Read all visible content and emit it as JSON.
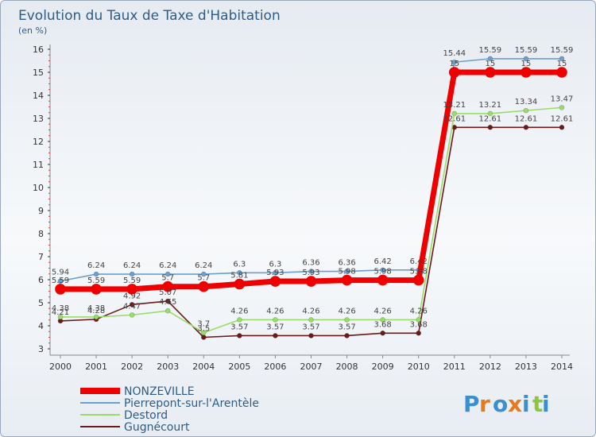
{
  "chart_data": {
    "type": "line",
    "title": "Evolution du Taux de Taxe d'Habitation",
    "subtitle": "(en %)",
    "xlabel": "",
    "ylabel": "",
    "x": [
      "2000",
      "2001",
      "2002",
      "2003",
      "2004",
      "2005",
      "2006",
      "2007",
      "2008",
      "2009",
      "2010",
      "2011",
      "2012",
      "2013",
      "2014"
    ],
    "ylim": [
      3,
      16
    ],
    "yticks": [
      "3",
      "4",
      "5",
      "6",
      "7",
      "8",
      "9",
      "10",
      "11",
      "12",
      "13",
      "14",
      "15",
      "16"
    ],
    "grid": false,
    "legend_position": "bottom-left",
    "series": [
      {
        "name": "NONZEVILLE",
        "color": "#ee0000",
        "values": [
          5.59,
          5.59,
          5.59,
          5.7,
          5.7,
          5.81,
          5.93,
          5.93,
          5.98,
          5.98,
          5.98,
          15,
          15,
          15,
          15
        ],
        "labels": [
          "5.59",
          "5.59",
          "5.59",
          "5.7",
          "5.7",
          "5.81",
          "5.93",
          "5.93",
          "5.98",
          "5.98",
          "5.98",
          "15",
          "15",
          "15",
          "15"
        ]
      },
      {
        "name": "Pierrepont-sur-l'Arentèle",
        "color": "#6a9fd0",
        "values": [
          5.94,
          6.24,
          6.24,
          6.24,
          6.24,
          6.3,
          6.3,
          6.36,
          6.36,
          6.42,
          6.42,
          15.44,
          15.59,
          15.59,
          15.59
        ],
        "labels": [
          "5.94",
          "6.24",
          "6.24",
          "6.24",
          "6.24",
          "6.3",
          "6.3",
          "6.36",
          "6.36",
          "6.42",
          "6.42",
          "15.44",
          "15.59",
          "15.59",
          "15.59"
        ]
      },
      {
        "name": "Destord",
        "color": "#99dd66",
        "values": [
          4.38,
          4.38,
          4.47,
          4.65,
          3.7,
          4.26,
          4.26,
          4.26,
          4.26,
          4.26,
          4.26,
          13.21,
          13.21,
          13.34,
          13.47
        ],
        "labels": [
          "4.38",
          "4.38",
          "4.47",
          "4.65",
          "3.7",
          "4.26",
          "4.26",
          "4.26",
          "4.26",
          "4.26",
          "4.26",
          "13.21",
          "13.21",
          "13.34",
          "13.47"
        ]
      },
      {
        "name": "Gugnécourt",
        "color": "#6b1a1a",
        "values": [
          4.21,
          4.28,
          4.92,
          5.07,
          3.5,
          3.57,
          3.57,
          3.57,
          3.57,
          3.68,
          3.68,
          12.61,
          12.61,
          12.61,
          12.61
        ],
        "labels": [
          "4.21",
          "4.28",
          "4.92",
          "5.07",
          "3.5",
          "3.57",
          "3.57",
          "3.57",
          "3.57",
          "3.68",
          "3.68",
          "12.61",
          "12.61",
          "12.61",
          "12.61"
        ]
      }
    ]
  },
  "logo": {
    "text": "Proxiti",
    "colors": [
      "#3a8fd0",
      "#e87a1e",
      "#3a8fd0",
      "#e87a1e",
      "#3a8fd0",
      "#8cc63f",
      "#3a8fd0"
    ]
  }
}
